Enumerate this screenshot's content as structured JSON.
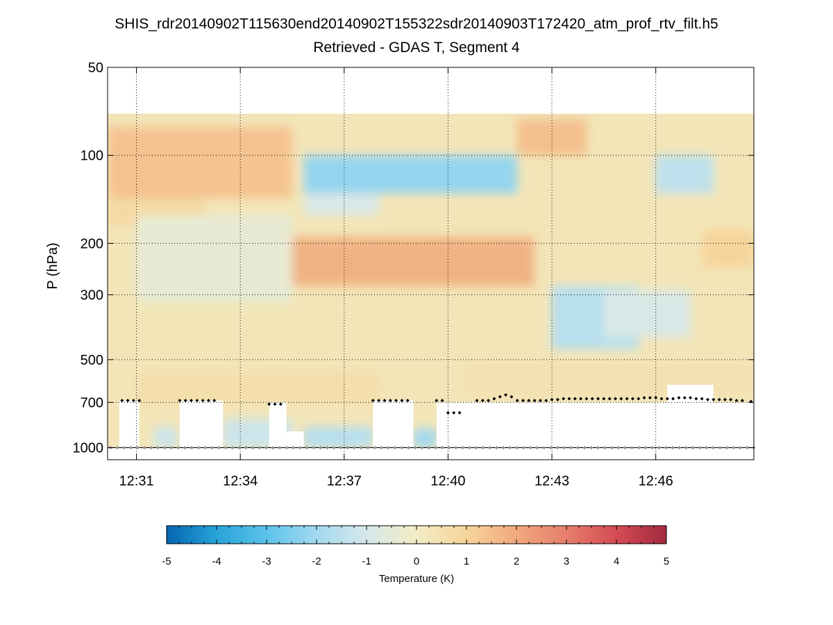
{
  "chart_data": {
    "type": "heatmap",
    "title": "SHIS_rdr20140902T115630end20140902T155322sdr20140903T172420_atm_prof_rtv_filt.h5",
    "subtitle": "Retrieved - GDAS T, Segment 4",
    "xlabel": "",
    "ylabel": "P (hPa)",
    "y_scale": "log",
    "y_direction": "reversed",
    "grid": "dotted, on",
    "xlim": [
      "12:30:10",
      "12:48:50"
    ],
    "ylim": [
      50,
      1100
    ],
    "x_ticks": [
      "12:31",
      "12:34",
      "12:37",
      "12:40",
      "12:43",
      "12:46"
    ],
    "y_ticks": [
      50,
      100,
      200,
      300,
      500,
      700,
      1000
    ],
    "y_tick_labels": [
      "50",
      "100",
      "200",
      "300",
      "500",
      "700",
      "1000"
    ],
    "data_top_pressure_hpa": 72,
    "colorbar": {
      "label": "Temperature (K)",
      "min": -5,
      "max": 5,
      "ticks": [
        -5,
        -4,
        -3,
        -2,
        -1,
        0,
        1,
        2,
        3,
        4,
        5
      ],
      "tick_labels": [
        "-5",
        "-4",
        "-3",
        "-2",
        "-1",
        "0",
        "1",
        "2",
        "3",
        "4",
        "5"
      ],
      "colormap": [
        "#0566b0",
        "#28a2d8",
        "#5bc3ea",
        "#a3d9ef",
        "#d6e8ea",
        "#f2ecc4",
        "#f6d49b",
        "#f0a97d",
        "#e67e6b",
        "#d34c54",
        "#a32a3f"
      ],
      "position": "bottom, horizontal"
    },
    "features": [
      {
        "type": "warm",
        "time_start": "12:30:10",
        "time_end": "12:35:30",
        "p_top": 80,
        "p_bottom": 140,
        "anomaly_K": 1.4
      },
      {
        "type": "warm",
        "time_start": "12:30:10",
        "time_end": "12:33:00",
        "p_top": 140,
        "p_bottom": 175,
        "anomaly_K": 0.8
      },
      {
        "type": "cold",
        "time_start": "12:35:50",
        "time_end": "12:42:00",
        "p_top": 100,
        "p_bottom": 135,
        "anomaly_K": -2.2
      },
      {
        "type": "cold",
        "time_start": "12:35:50",
        "time_end": "12:38:00",
        "p_top": 135,
        "p_bottom": 160,
        "anomaly_K": -0.9
      },
      {
        "type": "warm",
        "time_start": "12:35:00",
        "time_end": "12:42:30",
        "p_top": 190,
        "p_bottom": 280,
        "anomaly_K": 1.8
      },
      {
        "type": "warm",
        "time_start": "12:42:00",
        "time_end": "12:44:00",
        "p_top": 75,
        "p_bottom": 100,
        "anomaly_K": 1.5
      },
      {
        "type": "cold",
        "time_start": "12:43:00",
        "time_end": "12:45:30",
        "p_top": 280,
        "p_bottom": 460,
        "anomaly_K": -1.6
      },
      {
        "type": "cold",
        "time_start": "12:46:00",
        "time_end": "12:47:40",
        "p_top": 100,
        "p_bottom": 135,
        "anomaly_K": -1.5
      },
      {
        "type": "cold",
        "time_start": "12:44:30",
        "time_end": "12:47:00",
        "p_top": 290,
        "p_bottom": 420,
        "anomaly_K": -0.9
      },
      {
        "type": "warm",
        "time_start": "12:47:20",
        "time_end": "12:48:50",
        "p_top": 180,
        "p_bottom": 240,
        "anomaly_K": 1.0
      },
      {
        "type": "cold",
        "time_start": "12:31:00",
        "time_end": "12:35:30",
        "p_top": 160,
        "p_bottom": 320,
        "anomaly_K": -0.4
      },
      {
        "type": "warm",
        "time_start": "12:31:00",
        "time_end": "12:38:00",
        "p_top": 550,
        "p_bottom": 700,
        "anomaly_K": 0.6
      },
      {
        "type": "cold",
        "time_start": "12:33:30",
        "time_end": "12:35:30",
        "p_top": 800,
        "p_bottom": 1000,
        "anomaly_K": -1.2
      },
      {
        "type": "cold",
        "time_start": "12:35:50",
        "time_end": "12:37:50",
        "p_top": 850,
        "p_bottom": 1000,
        "anomaly_K": -1.6
      },
      {
        "type": "cold",
        "time_start": "12:39:00",
        "time_end": "12:39:40",
        "p_top": 860,
        "p_bottom": 1000,
        "anomaly_K": -2.0
      },
      {
        "type": "cold",
        "time_start": "12:31:30",
        "time_end": "12:32:10",
        "p_top": 850,
        "p_bottom": 1000,
        "anomaly_K": -1.2
      },
      {
        "type": "warm",
        "time_start": "12:40:30",
        "time_end": "12:48:50",
        "p_top": 520,
        "p_bottom": 660,
        "anomaly_K": 0.5
      }
    ],
    "no_data_regions": [
      {
        "time_start": "12:30:30",
        "time_end": "12:31:05",
        "p_top": 690,
        "p_bottom": 1000
      },
      {
        "time_start": "12:32:15",
        "time_end": "12:33:30",
        "p_top": 690,
        "p_bottom": 1000
      },
      {
        "time_start": "12:34:50",
        "time_end": "12:35:20",
        "p_top": 700,
        "p_bottom": 1000
      },
      {
        "time_start": "12:35:20",
        "time_end": "12:35:50",
        "p_top": 880,
        "p_bottom": 1000
      },
      {
        "time_start": "12:37:50",
        "time_end": "12:39:00",
        "p_top": 690,
        "p_bottom": 1000
      },
      {
        "time_start": "12:39:40",
        "time_end": "12:48:50",
        "p_top": 700,
        "p_bottom": 1000
      },
      {
        "time_start": "12:46:20",
        "time_end": "12:47:40",
        "p_top": 610,
        "p_bottom": 700
      }
    ],
    "surface_markers": {
      "pressure_hpa": 1000,
      "time_start": "12:30:15",
      "time_end": "12:48:50",
      "count": 96
    },
    "cloud_top_markers": [
      {
        "t": "12:30:35",
        "p": 690
      },
      {
        "t": "12:30:45",
        "p": 690
      },
      {
        "t": "12:30:55",
        "p": 690
      },
      {
        "t": "12:31:05",
        "p": 690
      },
      {
        "t": "12:32:15",
        "p": 690
      },
      {
        "t": "12:32:25",
        "p": 690
      },
      {
        "t": "12:32:35",
        "p": 690
      },
      {
        "t": "12:32:45",
        "p": 690
      },
      {
        "t": "12:32:55",
        "p": 690
      },
      {
        "t": "12:33:05",
        "p": 690
      },
      {
        "t": "12:33:15",
        "p": 690
      },
      {
        "t": "12:34:50",
        "p": 710
      },
      {
        "t": "12:35:00",
        "p": 710
      },
      {
        "t": "12:35:10",
        "p": 710
      },
      {
        "t": "12:37:50",
        "p": 690
      },
      {
        "t": "12:38:00",
        "p": 690
      },
      {
        "t": "12:38:10",
        "p": 690
      },
      {
        "t": "12:38:20",
        "p": 690
      },
      {
        "t": "12:38:30",
        "p": 690
      },
      {
        "t": "12:38:40",
        "p": 690
      },
      {
        "t": "12:38:50",
        "p": 690
      },
      {
        "t": "12:39:40",
        "p": 690
      },
      {
        "t": "12:39:50",
        "p": 690
      },
      {
        "t": "12:40:00",
        "p": 760
      },
      {
        "t": "12:40:10",
        "p": 760
      },
      {
        "t": "12:40:20",
        "p": 760
      },
      {
        "t": "12:40:50",
        "p": 690
      },
      {
        "t": "12:41:00",
        "p": 690
      },
      {
        "t": "12:41:10",
        "p": 690
      },
      {
        "t": "12:41:20",
        "p": 680
      },
      {
        "t": "12:41:30",
        "p": 670
      },
      {
        "t": "12:41:40",
        "p": 660
      },
      {
        "t": "12:41:50",
        "p": 670
      },
      {
        "t": "12:42:00",
        "p": 690
      },
      {
        "t": "12:42:10",
        "p": 690
      },
      {
        "t": "12:42:20",
        "p": 690
      },
      {
        "t": "12:42:30",
        "p": 690
      },
      {
        "t": "12:42:40",
        "p": 690
      },
      {
        "t": "12:42:50",
        "p": 690
      },
      {
        "t": "12:43:00",
        "p": 685
      },
      {
        "t": "12:43:10",
        "p": 685
      },
      {
        "t": "12:43:20",
        "p": 680
      },
      {
        "t": "12:43:30",
        "p": 680
      },
      {
        "t": "12:43:40",
        "p": 680
      },
      {
        "t": "12:43:50",
        "p": 680
      },
      {
        "t": "12:44:00",
        "p": 680
      },
      {
        "t": "12:44:10",
        "p": 680
      },
      {
        "t": "12:44:20",
        "p": 680
      },
      {
        "t": "12:44:30",
        "p": 680
      },
      {
        "t": "12:44:40",
        "p": 680
      },
      {
        "t": "12:44:50",
        "p": 680
      },
      {
        "t": "12:45:00",
        "p": 680
      },
      {
        "t": "12:45:10",
        "p": 680
      },
      {
        "t": "12:45:20",
        "p": 680
      },
      {
        "t": "12:45:30",
        "p": 680
      },
      {
        "t": "12:45:40",
        "p": 675
      },
      {
        "t": "12:45:50",
        "p": 675
      },
      {
        "t": "12:46:00",
        "p": 675
      },
      {
        "t": "12:46:10",
        "p": 680
      },
      {
        "t": "12:46:20",
        "p": 680
      },
      {
        "t": "12:46:30",
        "p": 680
      },
      {
        "t": "12:46:40",
        "p": 675
      },
      {
        "t": "12:46:50",
        "p": 675
      },
      {
        "t": "12:47:00",
        "p": 675
      },
      {
        "t": "12:47:10",
        "p": 680
      },
      {
        "t": "12:47:20",
        "p": 680
      },
      {
        "t": "12:47:30",
        "p": 685
      },
      {
        "t": "12:47:40",
        "p": 685
      },
      {
        "t": "12:47:50",
        "p": 685
      },
      {
        "t": "12:48:00",
        "p": 685
      },
      {
        "t": "12:48:10",
        "p": 685
      },
      {
        "t": "12:48:20",
        "p": 690
      },
      {
        "t": "12:48:30",
        "p": 690
      },
      {
        "t": "12:48:45",
        "p": 695
      }
    ]
  }
}
